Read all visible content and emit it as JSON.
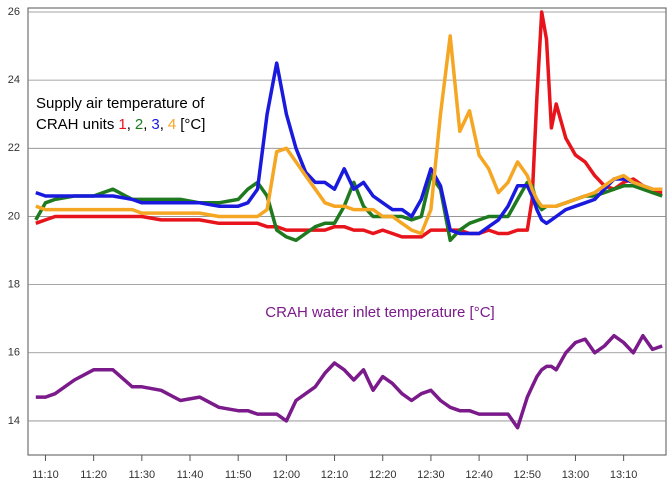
{
  "chart_data": {
    "type": "line",
    "annotation": {
      "line1": "Supply air temperature of",
      "prefix": "CRAH units",
      "separator": ",",
      "suffix": "[°C]"
    },
    "x": [
      "11:08",
      "11:10",
      "11:12",
      "11:16",
      "11:20",
      "11:24",
      "11:28",
      "11:30",
      "11:34",
      "11:38",
      "11:42",
      "11:46",
      "11:50",
      "11:52",
      "11:54",
      "11:56",
      "11:58",
      "12:00",
      "12:02",
      "12:04",
      "12:06",
      "12:08",
      "12:10",
      "12:12",
      "12:14",
      "12:16",
      "12:18",
      "12:20",
      "12:22",
      "12:24",
      "12:26",
      "12:28",
      "12:30",
      "12:32",
      "12:34",
      "12:36",
      "12:38",
      "12:40",
      "12:42",
      "12:44",
      "12:46",
      "12:48",
      "12:50",
      "12:51",
      "12:52",
      "12:53",
      "12:54",
      "12:55",
      "12:56",
      "12:58",
      "13:00",
      "13:02",
      "13:04",
      "13:06",
      "13:08",
      "13:10",
      "13:12",
      "13:14",
      "13:16",
      "13:18"
    ],
    "series": [
      {
        "name": "1",
        "color": "#e8141b",
        "values": [
          19.8,
          19.9,
          20.0,
          20.0,
          20.0,
          20.0,
          20.0,
          20.0,
          19.9,
          19.9,
          19.9,
          19.8,
          19.8,
          19.8,
          19.8,
          19.7,
          19.7,
          19.6,
          19.6,
          19.6,
          19.6,
          19.6,
          19.7,
          19.7,
          19.6,
          19.6,
          19.5,
          19.6,
          19.5,
          19.4,
          19.4,
          19.4,
          19.6,
          19.6,
          19.6,
          19.6,
          19.5,
          19.5,
          19.6,
          19.5,
          19.5,
          19.6,
          19.6,
          20.5,
          23.5,
          26.0,
          25.2,
          22.6,
          23.3,
          22.3,
          21.8,
          21.6,
          21.2,
          20.9,
          20.8,
          21.0,
          21.1,
          20.9,
          20.7,
          20.7
        ]
      },
      {
        "name": "2",
        "color": "#1f7a1f",
        "values": [
          19.9,
          20.4,
          20.5,
          20.6,
          20.6,
          20.8,
          20.5,
          20.5,
          20.5,
          20.5,
          20.4,
          20.4,
          20.5,
          20.8,
          21.0,
          20.6,
          19.6,
          19.4,
          19.3,
          19.5,
          19.7,
          19.8,
          19.8,
          20.3,
          21.0,
          20.3,
          20.0,
          20.0,
          20.0,
          20.0,
          19.9,
          20.0,
          21.2,
          20.8,
          19.3,
          19.6,
          19.8,
          19.9,
          20.0,
          20.0,
          20.0,
          20.5,
          21.0,
          20.9,
          20.4,
          20.2,
          20.3,
          20.3,
          20.3,
          20.4,
          20.5,
          20.6,
          20.6,
          20.7,
          20.8,
          20.9,
          20.9,
          20.8,
          20.7,
          20.6
        ]
      },
      {
        "name": "3",
        "color": "#1a1adf",
        "values": [
          20.7,
          20.6,
          20.6,
          20.6,
          20.6,
          20.6,
          20.5,
          20.4,
          20.4,
          20.4,
          20.4,
          20.3,
          20.3,
          20.4,
          20.8,
          23.0,
          24.5,
          23.0,
          22.0,
          21.3,
          21.0,
          21.0,
          20.8,
          21.4,
          20.8,
          21.0,
          20.6,
          20.4,
          20.2,
          20.2,
          20.0,
          20.5,
          21.4,
          20.9,
          19.6,
          19.5,
          19.5,
          19.5,
          19.7,
          19.9,
          20.3,
          20.9,
          20.9,
          20.6,
          20.2,
          19.9,
          19.8,
          19.9,
          20.0,
          20.2,
          20.3,
          20.4,
          20.5,
          20.8,
          21.1,
          21.1,
          21.0,
          20.9,
          20.8,
          20.8
        ]
      },
      {
        "name": "4",
        "color": "#f5a623",
        "values": [
          20.3,
          20.2,
          20.2,
          20.2,
          20.2,
          20.2,
          20.2,
          20.1,
          20.1,
          20.1,
          20.1,
          20.0,
          20.0,
          20.0,
          20.0,
          20.2,
          21.9,
          22.0,
          21.6,
          21.2,
          20.8,
          20.4,
          20.3,
          20.3,
          20.2,
          20.2,
          20.2,
          20.0,
          20.0,
          19.8,
          19.6,
          19.5,
          20.2,
          23.0,
          25.3,
          22.5,
          23.1,
          21.8,
          21.4,
          20.7,
          21.0,
          21.6,
          21.2,
          20.8,
          20.5,
          20.3,
          20.3,
          20.3,
          20.3,
          20.4,
          20.5,
          20.6,
          20.7,
          20.9,
          21.1,
          21.2,
          21.0,
          20.9,
          20.8,
          20.8
        ]
      },
      {
        "name": "CRAH water inlet temperature [°C]",
        "color": "#7b1a8a",
        "values": [
          14.7,
          14.7,
          14.8,
          15.2,
          15.5,
          15.5,
          15.0,
          15.0,
          14.9,
          14.6,
          14.7,
          14.4,
          14.3,
          14.3,
          14.2,
          14.2,
          14.2,
          14.0,
          14.6,
          14.8,
          15.0,
          15.4,
          15.7,
          15.5,
          15.2,
          15.5,
          14.9,
          15.3,
          15.1,
          14.8,
          14.6,
          14.8,
          14.9,
          14.6,
          14.4,
          14.3,
          14.3,
          14.2,
          14.2,
          14.2,
          14.2,
          13.8,
          14.7,
          15.0,
          15.3,
          15.5,
          15.6,
          15.6,
          15.5,
          16.0,
          16.3,
          16.4,
          16.0,
          16.2,
          16.5,
          16.3,
          16.0,
          16.5,
          16.1,
          16.2
        ]
      }
    ],
    "xlim": [
      "11:07",
      "13:19"
    ],
    "xticks": [
      "11:10",
      "11:20",
      "11:30",
      "11:40",
      "11:50",
      "12:00",
      "12:10",
      "12:20",
      "12:30",
      "12:40",
      "12:50",
      "13:00",
      "13:10"
    ],
    "ylim": [
      13,
      26
    ],
    "yticks": [
      14,
      16,
      18,
      20,
      22,
      24,
      26
    ],
    "grid": true
  }
}
